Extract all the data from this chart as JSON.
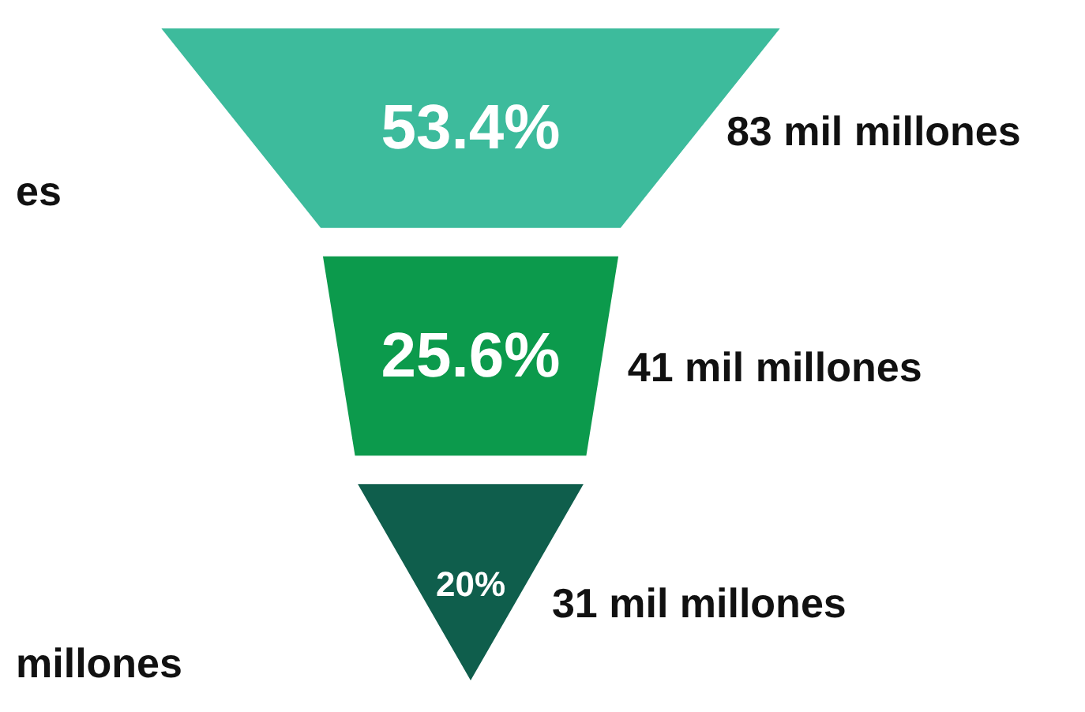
{
  "chart_data": {
    "type": "other",
    "categories": [
      "83 mil millones",
      "41 mil millones",
      "31 mil millones"
    ],
    "values": [
      53.4,
      25.6,
      20
    ],
    "value_labels": [
      "53.4%",
      "25.6%",
      "20%"
    ],
    "colors": [
      "#3dbb9c",
      "#0c9a4c",
      "#0f5e4c"
    ],
    "annotations": [
      "es",
      "millones"
    ]
  }
}
